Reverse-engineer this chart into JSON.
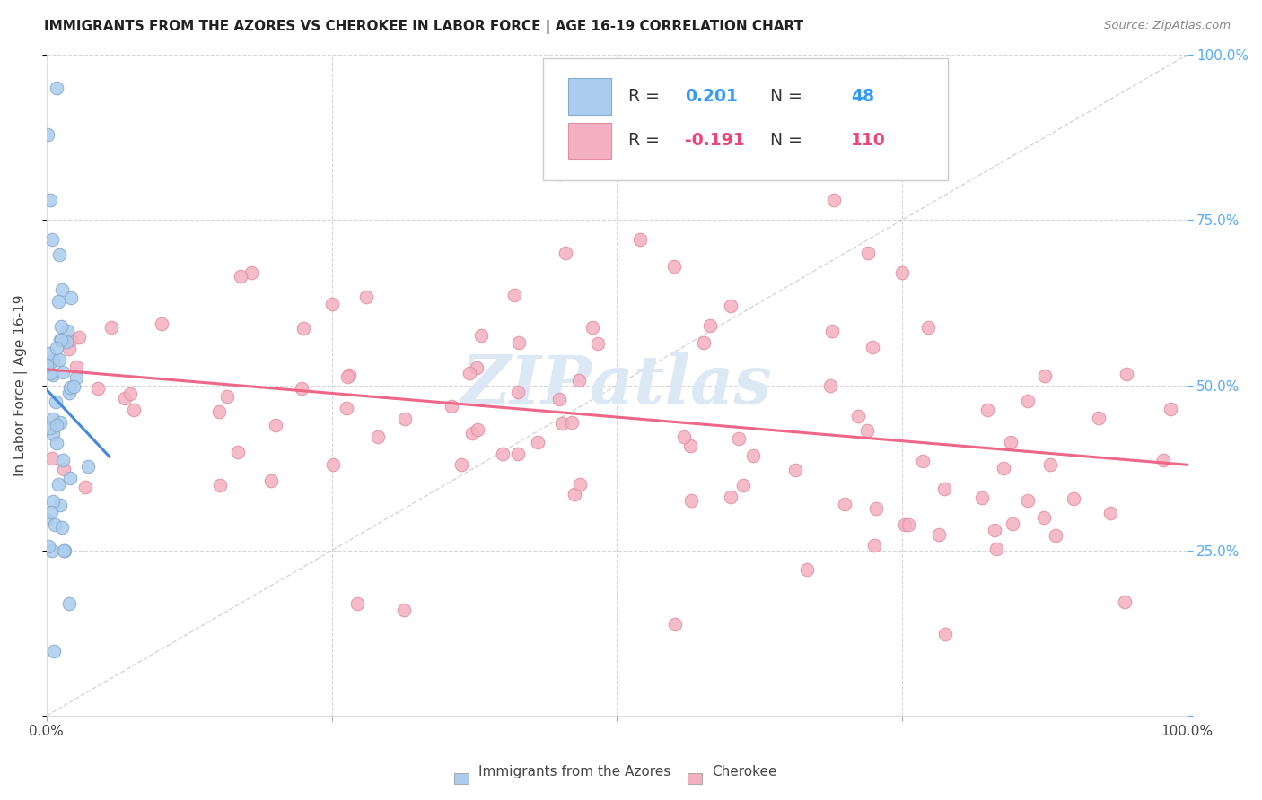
{
  "title": "IMMIGRANTS FROM THE AZORES VS CHEROKEE IN LABOR FORCE | AGE 16-19 CORRELATION CHART",
  "source": "Source: ZipAtlas.com",
  "ylabel": "In Labor Force | Age 16-19",
  "legend_azores": "Immigrants from the Azores",
  "legend_cherokee": "Cherokee",
  "R_azores": 0.201,
  "N_azores": 48,
  "R_cherokee": -0.191,
  "N_cherokee": 110,
  "color_azores_fill": "#aaccee",
  "color_azores_edge": "#88aacc",
  "color_cherokee_fill": "#f4b0c0",
  "color_cherokee_edge": "#e090a0",
  "color_line_azores": "#4488dd",
  "color_line_cherokee": "#ee6688",
  "color_diag": "#bbbbbb",
  "color_right_tick": "#55aaff",
  "background_color": "#ffffff",
  "seed": 12345
}
